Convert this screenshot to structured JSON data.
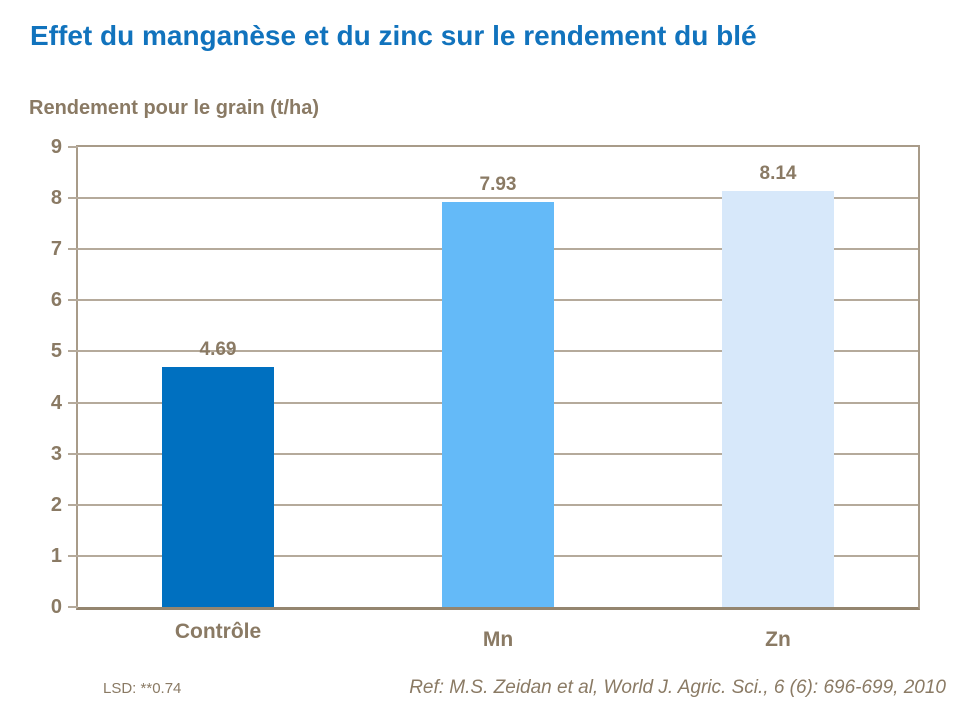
{
  "page": {
    "title": "Effet du manganèse et du zinc sur le rendement du blé",
    "y_axis_title": "Rendement pour le grain (t/ha)",
    "lsd_note": "LSD: **0.74",
    "reference": "Ref: M.S. Zeidan et al, World J. Agric. Sci., 6 (6): 696-699, 2010"
  },
  "colors": {
    "title_blue": "#1173BD",
    "text_brown": "#8A7A64",
    "gridline": "#B5AA9B",
    "plot_border": "#A89B89",
    "axis_line": "#94856F",
    "background": "#FFFFFF"
  },
  "chart_data": {
    "type": "bar",
    "title": "Effet du manganèse et du zinc sur le rendement du blé",
    "ylabel": "Rendement pour le grain (t/ha)",
    "xlabel": "",
    "categories": [
      "Contrôle",
      "Mn",
      "Zn"
    ],
    "values": [
      4.69,
      7.93,
      8.14
    ],
    "data_labels": [
      "4.69",
      "7.93",
      "8.14"
    ],
    "bar_colors": [
      "#0070C0",
      "#64BAF8",
      "#D7E8FA"
    ],
    "ylim": [
      0,
      9
    ],
    "ytick_step": 1,
    "ytick_labels": [
      "0",
      "1",
      "2",
      "3",
      "4",
      "5",
      "6",
      "7",
      "8",
      "9"
    ],
    "grid": "horizontal",
    "legend": "none",
    "annotations": [
      "LSD: **0.74",
      "Ref: M.S. Zeidan et al, World J. Agric. Sci., 6 (6): 696-699, 2010"
    ]
  }
}
